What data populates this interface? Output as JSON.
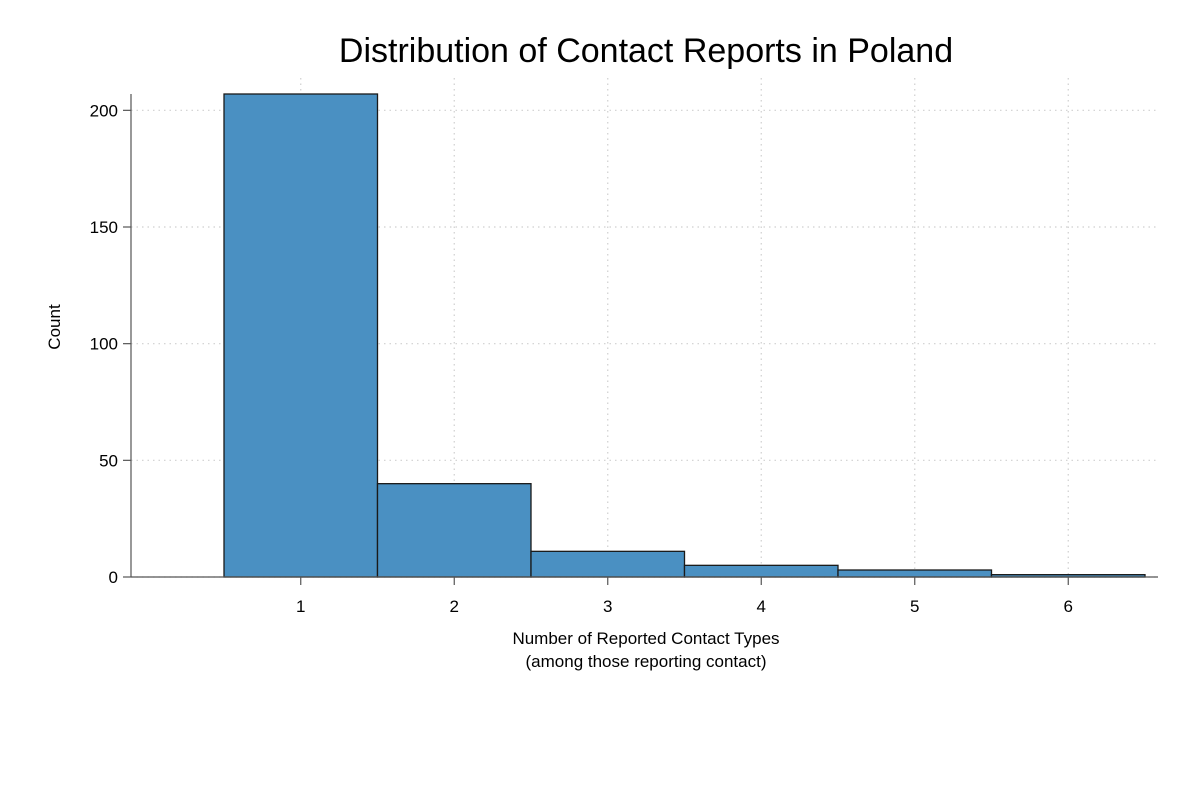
{
  "chart_data": {
    "type": "bar",
    "title": "Distribution of Contact Reports in Poland",
    "xlabel_lines": [
      "Number of Reported Contact Types",
      "(among those reporting contact)"
    ],
    "ylabel": "Count",
    "categories": [
      "1",
      "2",
      "3",
      "4",
      "5",
      "6"
    ],
    "values": [
      207,
      40,
      11,
      5,
      3,
      1
    ],
    "xlim": [
      0.5,
      6.5
    ],
    "ylim": [
      0,
      207
    ],
    "yticks": [
      0,
      50,
      100,
      150,
      200
    ],
    "bar_color": "#4a90c2",
    "grid": true,
    "legend": "none"
  }
}
